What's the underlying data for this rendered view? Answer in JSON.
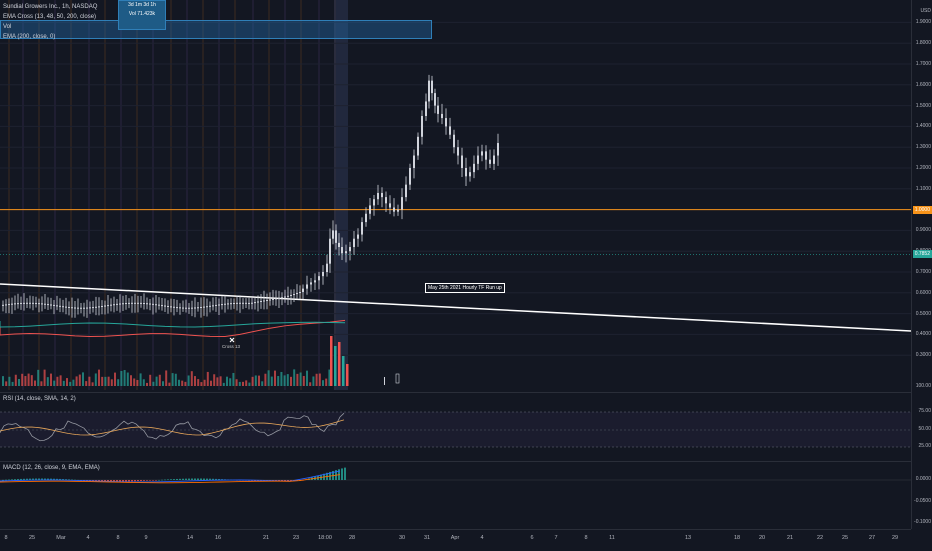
{
  "tooltip": {
    "line1": "3d 1m 3d 1h",
    "line2": "Vol 71.423k"
  },
  "legend": {
    "main_title": "Sundial Growers Inc., 1h, NASDAQ",
    "ema_cross": "EMA Cross (13, 48, 50, 200, close)",
    "vol": "Vol",
    "ema": "EMA (200, close, 0)",
    "rsi": "RSI (14, close, SMA, 14, 2)",
    "macd": "MACD (12, 26, close, 9, EMA, EMA)"
  },
  "annotation": "May 25th 2021 Hourly TF Run up",
  "cross_label": "Cross 13",
  "price_axis": {
    "unit": "USD",
    "ticks": [
      "1.9000",
      "1.8000",
      "1.7000",
      "1.6000",
      "1.5000",
      "1.4000",
      "1.3000",
      "1.2000",
      "1.1000",
      "1.0000",
      "0.9000",
      "0.8000",
      "0.7000",
      "0.6000",
      "0.5000",
      "0.4000",
      "0.3000"
    ],
    "badge_orange": "1.0000",
    "badge_teal": "0.7852",
    "vol_label": "100.00",
    "rsi_ticks": [
      "75.00",
      "50.00",
      "25.00"
    ],
    "macd_ticks": [
      "0.0000",
      "-0.0500",
      "-0.1000"
    ]
  },
  "time_axis": [
    "8",
    "25",
    "Mar",
    "4",
    "8",
    "9",
    "14",
    "16",
    "21",
    "23",
    "18:00",
    "28",
    "30",
    "31",
    "Apr",
    "4",
    "6",
    "7",
    "8",
    "11",
    "13",
    "18",
    "20",
    "21",
    "22",
    "25",
    "27",
    "29"
  ],
  "colors": {
    "background": "#131722",
    "candle": "#d1d4dc",
    "horizontal_line": "#f7931a",
    "trend_line": "#ffffff",
    "ema_fast": "#26a69a",
    "ema_slow": "#ef5350",
    "rsi_line": "#9598a1",
    "rsi_ma": "#e8a75a",
    "macd_line": "#2962ff",
    "signal_line": "#ff6d00",
    "vol_up": "#26a69a",
    "vol_down": "#ef5350"
  },
  "icons": [
    "cross-marker-icon"
  ]
}
